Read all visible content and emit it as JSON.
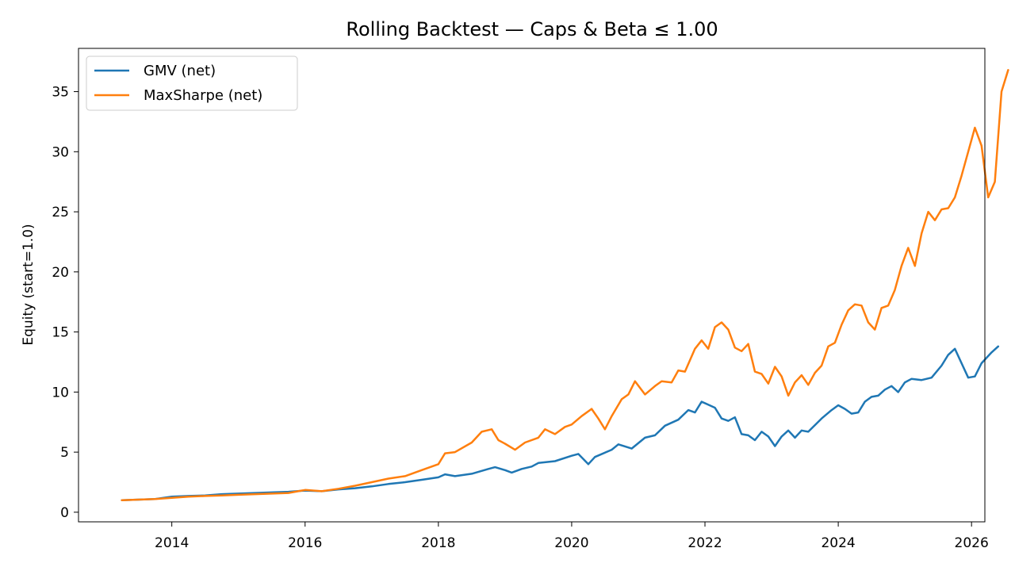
{
  "chart_data": {
    "type": "line",
    "title": "Rolling Backtest — Caps & Beta ≤ 1.00",
    "xlabel": "",
    "ylabel": "Equity (start=1.0)",
    "xlim": [
      2012.6,
      2026.2
    ],
    "ylim": [
      -0.8,
      38.6
    ],
    "x_ticks": [
      2014,
      2016,
      2018,
      2020,
      2022,
      2024,
      2026
    ],
    "x_tick_labels": [
      "2014",
      "2016",
      "2018",
      "2020",
      "2022",
      "2024",
      "2026"
    ],
    "y_ticks": [
      0,
      5,
      10,
      15,
      20,
      25,
      30,
      35
    ],
    "y_tick_labels": [
      "0",
      "5",
      "10",
      "15",
      "20",
      "25",
      "30",
      "35"
    ],
    "grid": false,
    "legend_position": "top-left",
    "series": [
      {
        "name": "GMV (net)",
        "color": "#1f77b4",
        "points": [
          [
            2013.25,
            1.0
          ],
          [
            2013.5,
            1.05
          ],
          [
            2013.75,
            1.1
          ],
          [
            2014.0,
            1.3
          ],
          [
            2014.25,
            1.35
          ],
          [
            2014.5,
            1.4
          ],
          [
            2014.75,
            1.5
          ],
          [
            2015.0,
            1.55
          ],
          [
            2015.25,
            1.6
          ],
          [
            2015.5,
            1.65
          ],
          [
            2015.75,
            1.7
          ],
          [
            2016.0,
            1.8
          ],
          [
            2016.25,
            1.75
          ],
          [
            2016.5,
            1.9
          ],
          [
            2016.75,
            2.0
          ],
          [
            2017.0,
            2.15
          ],
          [
            2017.25,
            2.35
          ],
          [
            2017.5,
            2.5
          ],
          [
            2017.75,
            2.7
          ],
          [
            2018.0,
            2.9
          ],
          [
            2018.1,
            3.15
          ],
          [
            2018.25,
            3.0
          ],
          [
            2018.5,
            3.2
          ],
          [
            2018.75,
            3.6
          ],
          [
            2018.85,
            3.75
          ],
          [
            2019.0,
            3.5
          ],
          [
            2019.1,
            3.3
          ],
          [
            2019.25,
            3.6
          ],
          [
            2019.4,
            3.8
          ],
          [
            2019.5,
            4.1
          ],
          [
            2019.75,
            4.25
          ],
          [
            2020.0,
            4.7
          ],
          [
            2020.1,
            4.85
          ],
          [
            2020.25,
            4.0
          ],
          [
            2020.35,
            4.6
          ],
          [
            2020.6,
            5.2
          ],
          [
            2020.7,
            5.65
          ],
          [
            2020.9,
            5.3
          ],
          [
            2021.1,
            6.2
          ],
          [
            2021.25,
            6.4
          ],
          [
            2021.4,
            7.2
          ],
          [
            2021.6,
            7.7
          ],
          [
            2021.75,
            8.5
          ],
          [
            2021.85,
            8.3
          ],
          [
            2021.95,
            9.2
          ],
          [
            2022.15,
            8.7
          ],
          [
            2022.25,
            7.8
          ],
          [
            2022.35,
            7.6
          ],
          [
            2022.45,
            7.9
          ],
          [
            2022.55,
            6.5
          ],
          [
            2022.65,
            6.4
          ],
          [
            2022.75,
            6.0
          ],
          [
            2022.85,
            6.7
          ],
          [
            2022.95,
            6.3
          ],
          [
            2023.05,
            5.5
          ],
          [
            2023.15,
            6.3
          ],
          [
            2023.25,
            6.8
          ],
          [
            2023.35,
            6.2
          ],
          [
            2023.45,
            6.8
          ],
          [
            2023.55,
            6.7
          ],
          [
            2023.75,
            7.8
          ],
          [
            2023.9,
            8.5
          ],
          [
            2024.0,
            8.9
          ],
          [
            2024.1,
            8.6
          ],
          [
            2024.2,
            8.2
          ],
          [
            2024.3,
            8.3
          ],
          [
            2024.4,
            9.2
          ],
          [
            2024.5,
            9.6
          ],
          [
            2024.6,
            9.7
          ],
          [
            2024.7,
            10.2
          ],
          [
            2024.8,
            10.5
          ],
          [
            2024.9,
            10.0
          ],
          [
            2025.0,
            10.8
          ],
          [
            2025.1,
            11.1
          ],
          [
            2025.25,
            11.0
          ],
          [
            2025.4,
            11.2
          ],
          [
            2025.55,
            12.2
          ],
          [
            2025.65,
            13.1
          ],
          [
            2025.75,
            13.6
          ],
          [
            2025.85,
            12.4
          ],
          [
            2025.95,
            11.2
          ],
          [
            2026.05,
            11.3
          ],
          [
            2026.15,
            12.4
          ],
          [
            2026.3,
            13.3
          ],
          [
            2026.4,
            13.8
          ]
        ]
      },
      {
        "name": "MaxSharpe (net)",
        "color": "#ff7f0e",
        "points": [
          [
            2013.25,
            1.0
          ],
          [
            2013.5,
            1.05
          ],
          [
            2013.75,
            1.1
          ],
          [
            2014.0,
            1.2
          ],
          [
            2014.25,
            1.3
          ],
          [
            2014.5,
            1.35
          ],
          [
            2014.75,
            1.4
          ],
          [
            2015.0,
            1.45
          ],
          [
            2015.25,
            1.5
          ],
          [
            2015.5,
            1.55
          ],
          [
            2015.75,
            1.6
          ],
          [
            2016.0,
            1.85
          ],
          [
            2016.25,
            1.75
          ],
          [
            2016.5,
            1.95
          ],
          [
            2016.75,
            2.2
          ],
          [
            2017.0,
            2.5
          ],
          [
            2017.25,
            2.8
          ],
          [
            2017.5,
            3.0
          ],
          [
            2017.75,
            3.5
          ],
          [
            2018.0,
            4.0
          ],
          [
            2018.1,
            4.9
          ],
          [
            2018.25,
            5.0
          ],
          [
            2018.5,
            5.8
          ],
          [
            2018.65,
            6.7
          ],
          [
            2018.8,
            6.9
          ],
          [
            2018.9,
            6.0
          ],
          [
            2019.0,
            5.7
          ],
          [
            2019.15,
            5.2
          ],
          [
            2019.3,
            5.8
          ],
          [
            2019.5,
            6.2
          ],
          [
            2019.6,
            6.9
          ],
          [
            2019.75,
            6.5
          ],
          [
            2019.9,
            7.1
          ],
          [
            2020.0,
            7.3
          ],
          [
            2020.15,
            8.0
          ],
          [
            2020.3,
            8.6
          ],
          [
            2020.4,
            7.8
          ],
          [
            2020.5,
            6.9
          ],
          [
            2020.6,
            8.0
          ],
          [
            2020.75,
            9.4
          ],
          [
            2020.85,
            9.8
          ],
          [
            2020.95,
            10.9
          ],
          [
            2021.1,
            9.8
          ],
          [
            2021.25,
            10.5
          ],
          [
            2021.35,
            10.9
          ],
          [
            2021.5,
            10.8
          ],
          [
            2021.6,
            11.8
          ],
          [
            2021.7,
            11.7
          ],
          [
            2021.85,
            13.6
          ],
          [
            2021.95,
            14.3
          ],
          [
            2022.05,
            13.6
          ],
          [
            2022.15,
            15.4
          ],
          [
            2022.25,
            15.8
          ],
          [
            2022.35,
            15.2
          ],
          [
            2022.45,
            13.7
          ],
          [
            2022.55,
            13.4
          ],
          [
            2022.65,
            14.0
          ],
          [
            2022.75,
            11.7
          ],
          [
            2022.85,
            11.5
          ],
          [
            2022.95,
            10.7
          ],
          [
            2023.05,
            12.1
          ],
          [
            2023.15,
            11.3
          ],
          [
            2023.25,
            9.7
          ],
          [
            2023.35,
            10.8
          ],
          [
            2023.45,
            11.4
          ],
          [
            2023.55,
            10.6
          ],
          [
            2023.65,
            11.6
          ],
          [
            2023.75,
            12.2
          ],
          [
            2023.85,
            13.8
          ],
          [
            2023.95,
            14.1
          ],
          [
            2024.05,
            15.6
          ],
          [
            2024.15,
            16.8
          ],
          [
            2024.25,
            17.3
          ],
          [
            2024.35,
            17.2
          ],
          [
            2024.45,
            15.8
          ],
          [
            2024.55,
            15.2
          ],
          [
            2024.65,
            17.0
          ],
          [
            2024.75,
            17.2
          ],
          [
            2024.85,
            18.5
          ],
          [
            2024.95,
            20.5
          ],
          [
            2025.05,
            22.0
          ],
          [
            2025.15,
            20.5
          ],
          [
            2025.25,
            23.2
          ],
          [
            2025.35,
            25.0
          ],
          [
            2025.45,
            24.3
          ],
          [
            2025.55,
            25.2
          ],
          [
            2025.65,
            25.3
          ],
          [
            2025.75,
            26.2
          ],
          [
            2025.85,
            28.0
          ],
          [
            2025.95,
            30.0
          ],
          [
            2026.05,
            32.0
          ],
          [
            2026.15,
            30.5
          ],
          [
            2026.25,
            26.2
          ],
          [
            2026.35,
            27.5
          ],
          [
            2026.45,
            35.0
          ],
          [
            2026.55,
            36.8
          ]
        ]
      }
    ]
  }
}
